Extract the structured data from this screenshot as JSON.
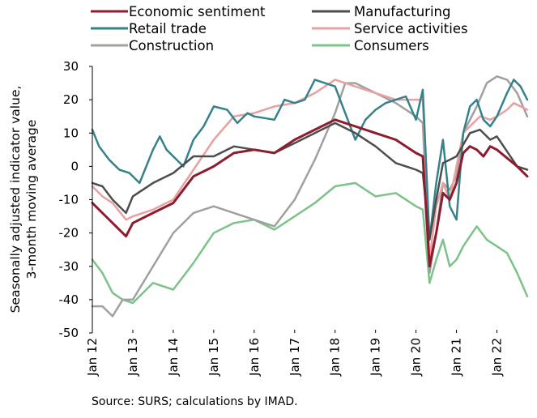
{
  "source_note": "Source: SURS; calculations by IMAD.",
  "chart_data": {
    "type": "line",
    "title": "",
    "xlabel": "",
    "ylabel_lines": [
      "Seasonally adjusted indicator value,",
      "3-month moving average"
    ],
    "ylim": [
      -50,
      30
    ],
    "yticks": [
      30,
      20,
      10,
      0,
      -10,
      -20,
      -30,
      -40,
      -50
    ],
    "x_start": "Jan 12",
    "x_end": "Oct 22",
    "xticks": [
      "Jan 12",
      "Jan 13",
      "Jan 14",
      "Jan 15",
      "Jan 16",
      "Jan 17",
      "Jan 18",
      "Jan 19",
      "Jan 20",
      "Jan 21",
      "Jan 22"
    ],
    "grid": false,
    "legend_position": "top",
    "series": [
      {
        "name": "Economic sentiment",
        "color": "#8c1c2e",
        "width": 3,
        "points": [
          [
            "Jan 12",
            -11
          ],
          [
            "Jul 12",
            -17
          ],
          [
            "Nov 12",
            -21
          ],
          [
            "Jan 13",
            -17
          ],
          [
            "Jul 13",
            -14
          ],
          [
            "Jan 14",
            -11
          ],
          [
            "Jul 14",
            -3
          ],
          [
            "Jan 15",
            0
          ],
          [
            "Jul 15",
            4
          ],
          [
            "Jan 16",
            5
          ],
          [
            "Jul 16",
            4
          ],
          [
            "Jan 17",
            8
          ],
          [
            "Jul 17",
            11
          ],
          [
            "Jan 18",
            14
          ],
          [
            "Jul 18",
            12
          ],
          [
            "Jan 19",
            10
          ],
          [
            "Jul 19",
            8
          ],
          [
            "Jan 20",
            4
          ],
          [
            "Mar 20",
            3
          ],
          [
            "May 20",
            -30
          ],
          [
            "Jul 20",
            -20
          ],
          [
            "Sep 20",
            -8
          ],
          [
            "Nov 20",
            -10
          ],
          [
            "Jan 21",
            -5
          ],
          [
            "Mar 21",
            4
          ],
          [
            "May 21",
            6
          ],
          [
            "Jul 21",
            5
          ],
          [
            "Sep 21",
            3
          ],
          [
            "Nov 21",
            6
          ],
          [
            "Jan 22",
            5
          ],
          [
            "Jul 22",
            0
          ],
          [
            "Oct 22",
            -3
          ]
        ]
      },
      {
        "name": "Manufacturing",
        "color": "#4d4d4d",
        "width": 2.5,
        "points": [
          [
            "Jan 12",
            -5
          ],
          [
            "Apr 12",
            -6
          ],
          [
            "Jul 12",
            -10
          ],
          [
            "Nov 12",
            -14
          ],
          [
            "Jan 13",
            -9
          ],
          [
            "Jul 13",
            -5
          ],
          [
            "Jan 14",
            -2
          ],
          [
            "Jul 14",
            3
          ],
          [
            "Jan 15",
            3
          ],
          [
            "Jul 15",
            6
          ],
          [
            "Jan 16",
            5
          ],
          [
            "Jul 16",
            4
          ],
          [
            "Jan 17",
            7
          ],
          [
            "Jul 17",
            10
          ],
          [
            "Jan 18",
            13
          ],
          [
            "Jul 18",
            10
          ],
          [
            "Jan 19",
            6
          ],
          [
            "Jul 19",
            1
          ],
          [
            "Jan 20",
            -1
          ],
          [
            "Mar 20",
            -2
          ],
          [
            "May 20",
            -22
          ],
          [
            "Jul 20",
            -10
          ],
          [
            "Sep 20",
            1
          ],
          [
            "Nov 20",
            2
          ],
          [
            "Jan 21",
            3
          ],
          [
            "May 21",
            10
          ],
          [
            "Aug 21",
            11
          ],
          [
            "Nov 21",
            8
          ],
          [
            "Jan 22",
            9
          ],
          [
            "Jul 22",
            0
          ],
          [
            "Oct 22",
            -1
          ]
        ]
      },
      {
        "name": "Retail trade",
        "color": "#36828a",
        "width": 2.5,
        "points": [
          [
            "Jan 12",
            11
          ],
          [
            "Mar 12",
            6
          ],
          [
            "Jun 12",
            2
          ],
          [
            "Sep 12",
            -1
          ],
          [
            "Dec 12",
            -2
          ],
          [
            "Mar 13",
            -5
          ],
          [
            "Jul 13",
            5
          ],
          [
            "Sep 13",
            9
          ],
          [
            "Nov 13",
            5
          ],
          [
            "Jan 14",
            3
          ],
          [
            "Apr 14",
            0
          ],
          [
            "Jul 14",
            8
          ],
          [
            "Oct 14",
            12
          ],
          [
            "Jan 15",
            18
          ],
          [
            "May 15",
            17
          ],
          [
            "Aug 15",
            13
          ],
          [
            "Nov 15",
            16
          ],
          [
            "Jan 16",
            15
          ],
          [
            "Jul 16",
            14
          ],
          [
            "Oct 16",
            20
          ],
          [
            "Jan 17",
            19
          ],
          [
            "Apr 17",
            20
          ],
          [
            "Jul 17",
            26
          ],
          [
            "Oct 17",
            25
          ],
          [
            "Jan 18",
            24
          ],
          [
            "Apr 18",
            16
          ],
          [
            "Jul 18",
            8
          ],
          [
            "Oct 18",
            14
          ],
          [
            "Jan 19",
            17
          ],
          [
            "Apr 19",
            19
          ],
          [
            "Jul 19",
            20
          ],
          [
            "Oct 19",
            21
          ],
          [
            "Jan 20",
            14
          ],
          [
            "Mar 20",
            23
          ],
          [
            "May 20",
            -22
          ],
          [
            "Jul 20",
            -5
          ],
          [
            "Sep 20",
            8
          ],
          [
            "Nov 20",
            -12
          ],
          [
            "Jan 21",
            -16
          ],
          [
            "Mar 21",
            10
          ],
          [
            "May 21",
            18
          ],
          [
            "Jul 21",
            20
          ],
          [
            "Sep 21",
            14
          ],
          [
            "Nov 21",
            12
          ],
          [
            "Jan 22",
            15
          ],
          [
            "Apr 22",
            22
          ],
          [
            "Jun 22",
            26
          ],
          [
            "Aug 22",
            24
          ],
          [
            "Oct 22",
            20
          ]
        ]
      },
      {
        "name": "Service activities",
        "color": "#e8a0a0",
        "width": 2.5,
        "points": [
          [
            "Jan 12",
            -6
          ],
          [
            "Apr 12",
            -9
          ],
          [
            "Jul 12",
            -11
          ],
          [
            "Nov 12",
            -16
          ],
          [
            "Jan 13",
            -15
          ],
          [
            "Jul 13",
            -13
          ],
          [
            "Jan 14",
            -10
          ],
          [
            "Jul 14",
            -1
          ],
          [
            "Jan 15",
            8
          ],
          [
            "Jul 15",
            15
          ],
          [
            "Jan 16",
            16
          ],
          [
            "Jul 16",
            18
          ],
          [
            "Jan 17",
            19
          ],
          [
            "Jul 17",
            22
          ],
          [
            "Jan 18",
            26
          ],
          [
            "Jul 18",
            24
          ],
          [
            "Jan 19",
            22
          ],
          [
            "Jul 19",
            20
          ],
          [
            "Jan 20",
            20
          ],
          [
            "Mar 20",
            20
          ],
          [
            "May 20",
            -28
          ],
          [
            "Jul 20",
            -12
          ],
          [
            "Sep 20",
            -5
          ],
          [
            "Nov 20",
            -10
          ],
          [
            "Jan 21",
            0
          ],
          [
            "Mar 21",
            10
          ],
          [
            "May 21",
            12
          ],
          [
            "Aug 21",
            15
          ],
          [
            "Nov 21",
            14
          ],
          [
            "Jan 22",
            15
          ],
          [
            "Apr 22",
            17
          ],
          [
            "Jun 22",
            19
          ],
          [
            "Aug 22",
            18
          ],
          [
            "Oct 22",
            17
          ]
        ]
      },
      {
        "name": "Construction",
        "color": "#a0a0a0",
        "width": 2.5,
        "points": [
          [
            "Jan 12",
            -42
          ],
          [
            "Apr 12",
            -42
          ],
          [
            "Jul 12",
            -45
          ],
          [
            "Oct 12",
            -40
          ],
          [
            "Jan 13",
            -40
          ],
          [
            "Jul 13",
            -30
          ],
          [
            "Jan 14",
            -20
          ],
          [
            "Jul 14",
            -14
          ],
          [
            "Jan 15",
            -12
          ],
          [
            "Jul 15",
            -14
          ],
          [
            "Jan 16",
            -16
          ],
          [
            "Jul 16",
            -18
          ],
          [
            "Jan 17",
            -10
          ],
          [
            "Jul 17",
            2
          ],
          [
            "Jan 18",
            16
          ],
          [
            "Apr 18",
            25
          ],
          [
            "Jul 18",
            25
          ],
          [
            "Jan 19",
            22
          ],
          [
            "Jul 19",
            19
          ],
          [
            "Jan 20",
            15
          ],
          [
            "Mar 20",
            13
          ],
          [
            "May 20",
            -32
          ],
          [
            "Jul 20",
            -20
          ],
          [
            "Sep 20",
            -5
          ],
          [
            "Nov 20",
            -7
          ],
          [
            "Jan 21",
            -3
          ],
          [
            "Mar 21",
            10
          ],
          [
            "Jul 21",
            18
          ],
          [
            "Oct 21",
            25
          ],
          [
            "Jan 22",
            27
          ],
          [
            "Apr 22",
            26
          ],
          [
            "Jul 22",
            22
          ],
          [
            "Oct 22",
            15
          ]
        ]
      },
      {
        "name": "Consumers",
        "color": "#7dc28a",
        "width": 2.5,
        "points": [
          [
            "Jan 12",
            -28
          ],
          [
            "Apr 12",
            -32
          ],
          [
            "Jul 12",
            -38
          ],
          [
            "Oct 12",
            -40
          ],
          [
            "Jan 13",
            -41
          ],
          [
            "Jul 13",
            -35
          ],
          [
            "Jan 14",
            -37
          ],
          [
            "Jul 14",
            -29
          ],
          [
            "Jan 15",
            -20
          ],
          [
            "Jul 15",
            -17
          ],
          [
            "Jan 16",
            -16
          ],
          [
            "Jul 16",
            -19
          ],
          [
            "Jan 17",
            -15
          ],
          [
            "Jul 17",
            -11
          ],
          [
            "Jan 18",
            -6
          ],
          [
            "Jul 18",
            -5
          ],
          [
            "Jan 19",
            -9
          ],
          [
            "Jul 19",
            -8
          ],
          [
            "Jan 20",
            -12
          ],
          [
            "Mar 20",
            -13
          ],
          [
            "May 20",
            -35
          ],
          [
            "Jul 20",
            -28
          ],
          [
            "Sep 20",
            -22
          ],
          [
            "Nov 20",
            -30
          ],
          [
            "Jan 21",
            -28
          ],
          [
            "Mar 21",
            -24
          ],
          [
            "May 21",
            -21
          ],
          [
            "Jul 21",
            -18
          ],
          [
            "Oct 21",
            -22
          ],
          [
            "Jan 22",
            -24
          ],
          [
            "Apr 22",
            -26
          ],
          [
            "Jul 22",
            -32
          ],
          [
            "Oct 22",
            -39
          ]
        ]
      }
    ]
  }
}
